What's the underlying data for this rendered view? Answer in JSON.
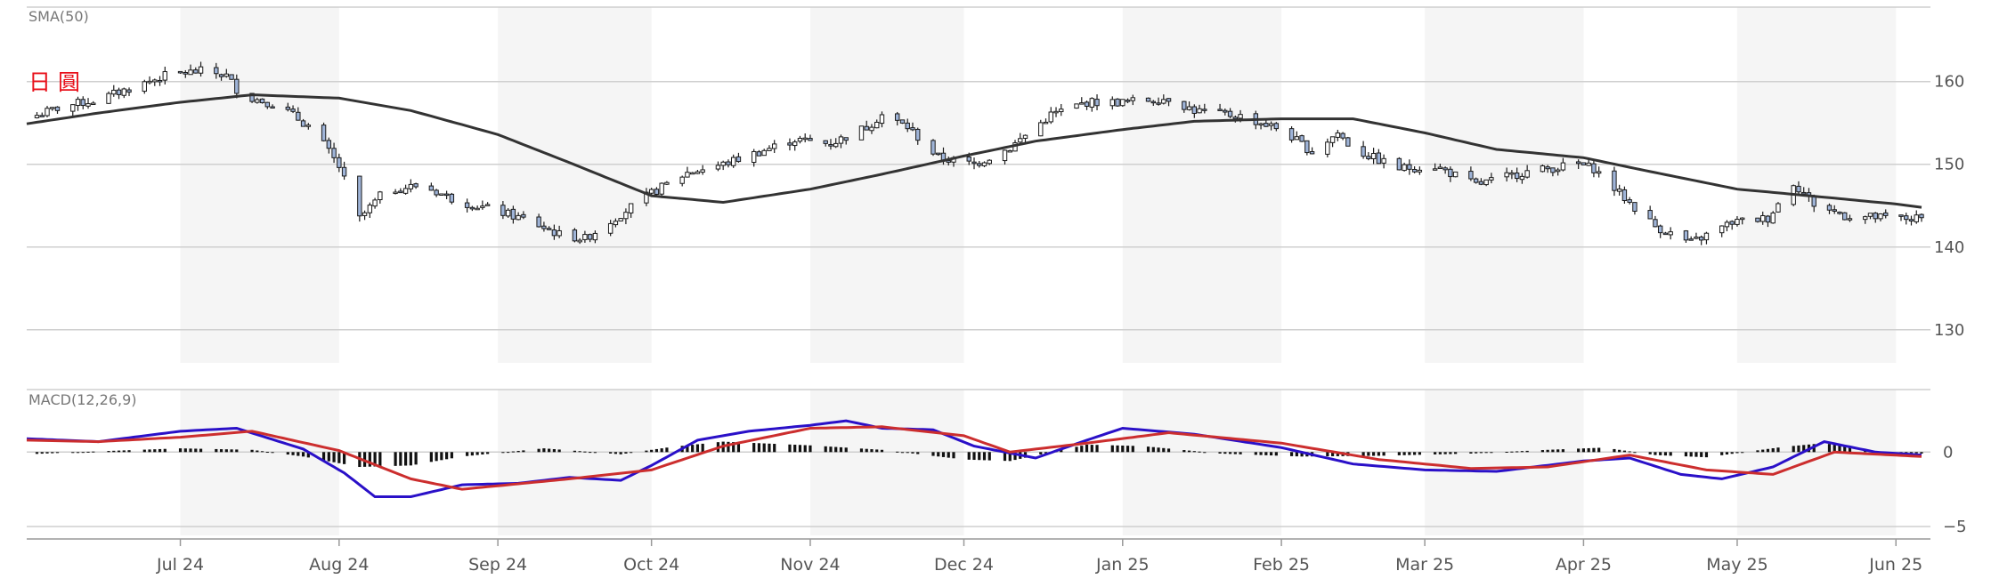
{
  "chart_data": [
    {
      "type": "candlestick",
      "indicator_label": "SMA(50)",
      "instrument_label": "日 圓",
      "y_ticks": [
        130,
        140,
        150,
        160
      ],
      "ylim": [
        126,
        169
      ],
      "x_ticks": [
        "Jul 24",
        "Aug 24",
        "Sep 24",
        "Oct 24",
        "Nov 24",
        "Dec 24",
        "Jan 25",
        "Feb 25",
        "Mar 25",
        "Apr 25",
        "May 25",
        "Jun 25"
      ],
      "price_close_series": [
        [
          "2024-06-01",
          155.5
        ],
        [
          "2024-06-08",
          157.0
        ],
        [
          "2024-06-15",
          157.8
        ],
        [
          "2024-06-22",
          159.4
        ],
        [
          "2024-06-29",
          160.9
        ],
        [
          "2024-07-06",
          161.3
        ],
        [
          "2024-07-10",
          160.7
        ],
        [
          "2024-07-13",
          158.3
        ],
        [
          "2024-07-20",
          157.2
        ],
        [
          "2024-07-27",
          154.2
        ],
        [
          "2024-08-01",
          149.7
        ],
        [
          "2024-08-05",
          143.4
        ],
        [
          "2024-08-10",
          146.8
        ],
        [
          "2024-08-17",
          147.5
        ],
        [
          "2024-08-24",
          145.6
        ],
        [
          "2024-08-31",
          144.5
        ],
        [
          "2024-09-07",
          143.2
        ],
        [
          "2024-09-13",
          141.5
        ],
        [
          "2024-09-18",
          141.0
        ],
        [
          "2024-09-25",
          144.0
        ],
        [
          "2024-10-01",
          146.5
        ],
        [
          "2024-10-08",
          149.0
        ],
        [
          "2024-10-15",
          150.0
        ],
        [
          "2024-10-22",
          151.5
        ],
        [
          "2024-10-29",
          153.0
        ],
        [
          "2024-11-05",
          152.5
        ],
        [
          "2024-11-12",
          154.5
        ],
        [
          "2024-11-15",
          156.0
        ],
        [
          "2024-11-20",
          154.5
        ],
        [
          "2024-11-26",
          150.8
        ],
        [
          "2024-12-03",
          150.0
        ],
        [
          "2024-12-10",
          152.0
        ],
        [
          "2024-12-18",
          156.0
        ],
        [
          "2024-12-25",
          157.5
        ],
        [
          "2025-01-01",
          157.5
        ],
        [
          "2025-01-10",
          158.0
        ],
        [
          "2025-01-15",
          156.5
        ],
        [
          "2025-01-24",
          155.8
        ],
        [
          "2025-02-01",
          154.2
        ],
        [
          "2025-02-07",
          151.5
        ],
        [
          "2025-02-12",
          153.8
        ],
        [
          "2025-02-15",
          151.8
        ],
        [
          "2025-02-24",
          149.5
        ],
        [
          "2025-03-03",
          149.8
        ],
        [
          "2025-03-11",
          147.5
        ],
        [
          "2025-03-20",
          149.0
        ],
        [
          "2025-03-31",
          150.0
        ],
        [
          "2025-04-03",
          149.5
        ],
        [
          "2025-04-08",
          146.5
        ],
        [
          "2025-04-15",
          142.5
        ],
        [
          "2025-04-22",
          140.5
        ],
        [
          "2025-04-30",
          143.0
        ],
        [
          "2025-05-07",
          143.5
        ],
        [
          "2025-05-12",
          147.8
        ],
        [
          "2025-05-16",
          145.2
        ],
        [
          "2025-05-22",
          143.8
        ],
        [
          "2025-05-30",
          143.5
        ],
        [
          "2025-06-06",
          143.4
        ]
      ],
      "sma50_series": [
        [
          "2024-06-01",
          154.9
        ],
        [
          "2024-06-15",
          156.2
        ],
        [
          "2024-07-01",
          157.5
        ],
        [
          "2024-07-15",
          158.4
        ],
        [
          "2024-08-01",
          158.0
        ],
        [
          "2024-08-15",
          156.5
        ],
        [
          "2024-09-01",
          153.6
        ],
        [
          "2024-09-15",
          150.2
        ],
        [
          "2024-10-01",
          146.2
        ],
        [
          "2024-10-15",
          145.4
        ],
        [
          "2024-11-01",
          147.0
        ],
        [
          "2024-11-15",
          148.8
        ],
        [
          "2024-12-01",
          151.0
        ],
        [
          "2024-12-15",
          152.8
        ],
        [
          "2025-01-01",
          154.2
        ],
        [
          "2025-01-15",
          155.2
        ],
        [
          "2025-02-01",
          155.5
        ],
        [
          "2025-02-15",
          155.5
        ],
        [
          "2025-03-01",
          153.8
        ],
        [
          "2025-03-15",
          151.8
        ],
        [
          "2025-04-01",
          150.8
        ],
        [
          "2025-04-15",
          149.0
        ],
        [
          "2025-05-01",
          147.0
        ],
        [
          "2025-05-15",
          146.2
        ],
        [
          "2025-06-01",
          145.2
        ],
        [
          "2025-06-06",
          144.8
        ]
      ]
    },
    {
      "type": "macd",
      "indicator_label": "MACD(12,26,9)",
      "y_ticks": [
        0,
        -5
      ],
      "ylim": [
        -5.6,
        4.2
      ],
      "x_ticks": [
        "Jul 24",
        "Aug 24",
        "Sep 24",
        "Oct 24",
        "Nov 24",
        "Dec 24",
        "Jan 25",
        "Feb 25",
        "Mar 25",
        "Apr 25",
        "May 25",
        "Jun 25"
      ],
      "macd_series": [
        [
          "2024-06-01",
          0.9
        ],
        [
          "2024-06-15",
          0.7
        ],
        [
          "2024-07-01",
          1.4
        ],
        [
          "2024-07-12",
          1.6
        ],
        [
          "2024-07-25",
          0.2
        ],
        [
          "2024-08-02",
          -1.4
        ],
        [
          "2024-08-08",
          -3.0
        ],
        [
          "2024-08-15",
          -3.0
        ],
        [
          "2024-08-25",
          -2.2
        ],
        [
          "2024-09-05",
          -2.1
        ],
        [
          "2024-09-15",
          -1.7
        ],
        [
          "2024-09-25",
          -1.9
        ],
        [
          "2024-10-01",
          -0.9
        ],
        [
          "2024-10-10",
          0.8
        ],
        [
          "2024-10-20",
          1.4
        ],
        [
          "2024-11-01",
          1.8
        ],
        [
          "2024-11-08",
          2.1
        ],
        [
          "2024-11-15",
          1.6
        ],
        [
          "2024-11-25",
          1.5
        ],
        [
          "2024-12-03",
          0.4
        ],
        [
          "2024-12-15",
          -0.4
        ],
        [
          "2024-12-25",
          0.8
        ],
        [
          "2025-01-01",
          1.6
        ],
        [
          "2025-01-15",
          1.2
        ],
        [
          "2025-02-01",
          0.3
        ],
        [
          "2025-02-15",
          -0.8
        ],
        [
          "2025-03-01",
          -1.2
        ],
        [
          "2025-03-15",
          -1.3
        ],
        [
          "2025-04-01",
          -0.6
        ],
        [
          "2025-04-10",
          -0.4
        ],
        [
          "2025-04-20",
          -1.5
        ],
        [
          "2025-04-28",
          -1.8
        ],
        [
          "2025-05-08",
          -1.0
        ],
        [
          "2025-05-18",
          0.7
        ],
        [
          "2025-05-28",
          0.0
        ],
        [
          "2025-06-06",
          -0.2
        ]
      ],
      "signal_series": [
        [
          "2024-06-01",
          0.8
        ],
        [
          "2024-06-15",
          0.7
        ],
        [
          "2024-07-01",
          1.0
        ],
        [
          "2024-07-15",
          1.4
        ],
        [
          "2024-08-01",
          0.1
        ],
        [
          "2024-08-15",
          -1.8
        ],
        [
          "2024-08-25",
          -2.5
        ],
        [
          "2024-09-15",
          -1.8
        ],
        [
          "2024-10-01",
          -1.2
        ],
        [
          "2024-10-15",
          0.4
        ],
        [
          "2024-11-01",
          1.6
        ],
        [
          "2024-11-15",
          1.7
        ],
        [
          "2024-12-01",
          1.1
        ],
        [
          "2024-12-10",
          0.0
        ],
        [
          "2024-12-25",
          0.6
        ],
        [
          "2025-01-10",
          1.3
        ],
        [
          "2025-02-01",
          0.6
        ],
        [
          "2025-02-20",
          -0.5
        ],
        [
          "2025-03-10",
          -1.1
        ],
        [
          "2025-03-25",
          -1.0
        ],
        [
          "2025-04-10",
          -0.2
        ],
        [
          "2025-04-25",
          -1.2
        ],
        [
          "2025-05-08",
          -1.5
        ],
        [
          "2025-05-20",
          0.0
        ],
        [
          "2025-06-06",
          -0.3
        ]
      ],
      "histogram_series": [
        [
          "2024-06-01",
          -0.15
        ],
        [
          "2024-06-15",
          0.05
        ],
        [
          "2024-07-01",
          0.25
        ],
        [
          "2024-07-15",
          0.15
        ],
        [
          "2024-07-25",
          -0.3
        ],
        [
          "2024-08-05",
          -1.0
        ],
        [
          "2024-08-15",
          -0.9
        ],
        [
          "2024-08-25",
          -0.3
        ],
        [
          "2024-09-10",
          0.25
        ],
        [
          "2024-09-25",
          -0.15
        ],
        [
          "2024-10-05",
          0.35
        ],
        [
          "2024-10-15",
          0.7
        ],
        [
          "2024-11-01",
          0.45
        ],
        [
          "2024-11-15",
          0.15
        ],
        [
          "2024-12-01",
          -0.5
        ],
        [
          "2024-12-10",
          -0.6
        ],
        [
          "2024-12-25",
          0.5
        ],
        [
          "2025-01-05",
          0.4
        ],
        [
          "2025-01-20",
          -0.1
        ],
        [
          "2025-02-05",
          -0.3
        ],
        [
          "2025-02-20",
          -0.25
        ],
        [
          "2025-03-10",
          -0.1
        ],
        [
          "2025-03-25",
          0.15
        ],
        [
          "2025-04-05",
          0.3
        ],
        [
          "2025-04-15",
          -0.2
        ],
        [
          "2025-04-25",
          -0.35
        ],
        [
          "2025-05-10",
          0.35
        ],
        [
          "2025-05-18",
          0.6
        ],
        [
          "2025-05-28",
          0.05
        ],
        [
          "2025-06-06",
          -0.1
        ]
      ]
    }
  ],
  "colors": {
    "candle_up": "#ffffff",
    "candle_down": "#9fb4d8",
    "candle_edge": "#1a1a1a",
    "sma": "#333333",
    "macd": "#2a10c8",
    "signal": "#cc2e2e",
    "histogram": "#111111",
    "grid": "#cfcfcf",
    "band": "#f5f5f5",
    "text": "#555555",
    "instrument_label": "#e8101a"
  }
}
